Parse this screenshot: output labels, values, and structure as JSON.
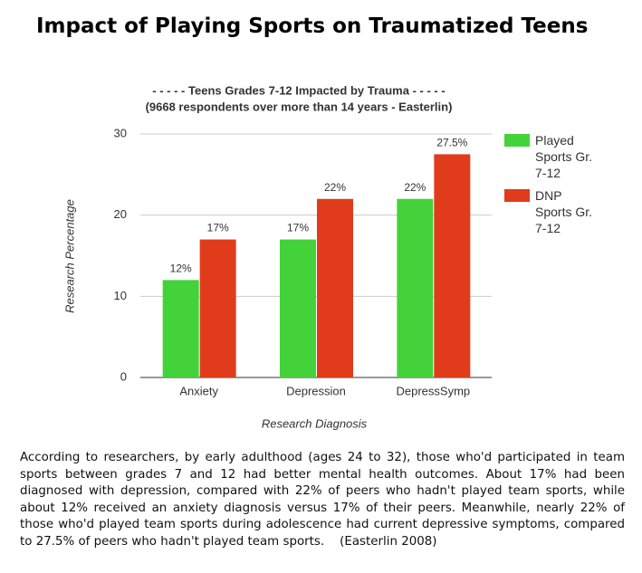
{
  "title": "Impact of Playing Sports on Traumatized Teens",
  "chart_data": {
    "type": "bar",
    "title": "- - - - - Teens Grades 7-12 Impacted by Trauma - - - - -",
    "subtitle": "(9668 respondents over more than 14 years - Easterlin)",
    "x_label": "Research Diagnosis",
    "y_label": "Research Percentage",
    "categories": [
      "Anxiety",
      "Depression",
      "DepressSymp"
    ],
    "series": [
      {
        "name": "Played Sports Gr. 7-12",
        "color": "#44d23a",
        "values": [
          12,
          17,
          22
        ],
        "value_labels": [
          "12%",
          "17%",
          "22%"
        ]
      },
      {
        "name": "DNP Sports Gr. 7-12",
        "color": "#e03c1c",
        "values": [
          17,
          22,
          27.5
        ],
        "value_labels": [
          "17%",
          "22%",
          "27.5%"
        ]
      }
    ],
    "ylim": [
      0,
      30
    ],
    "yticks": [
      0,
      10,
      20,
      30
    ],
    "grid": true,
    "legend": "right"
  },
  "text": "According to researchers, by early adulthood (ages 24 to 32), those who'd participated in team sports between grades 7 and 12 had better mental health outcomes. About 17% had been diagnosed with depression, compared with 22% of peers who hadn't played team sports, while about 12% received an anxiety diagnosis versus 17% of their peers. Meanwhile, nearly 22% of those who'd played team sports during adolescence had current depressive symptoms, compared to 27.5% of peers who hadn't played team sports.    (Easterlin 2008)"
}
